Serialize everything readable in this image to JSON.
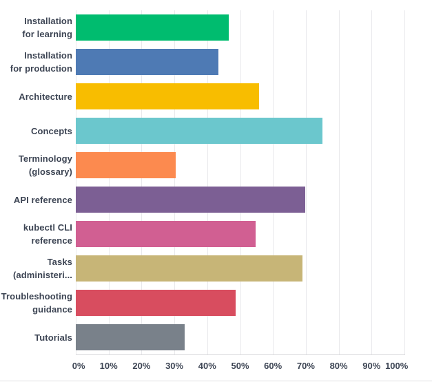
{
  "chart_data": {
    "type": "bar",
    "orientation": "horizontal",
    "categories": [
      "Installation for learning",
      "Installation for production",
      "Architecture",
      "Concepts",
      "Terminology (glossary)",
      "API reference",
      "kubectl CLI reference",
      "Tasks (administeri...",
      "Troubleshooting guidance",
      "Tutorials"
    ],
    "category_label_lines": [
      [
        "Installation",
        "for learning"
      ],
      [
        "Installation",
        "for production"
      ],
      [
        "Architecture"
      ],
      [
        "Concepts"
      ],
      [
        "Terminology",
        "(glossary)"
      ],
      [
        "API reference"
      ],
      [
        "kubectl CLI",
        "reference"
      ],
      [
        "Tasks",
        "(administeri..."
      ],
      [
        "Troubleshooting",
        "guidance"
      ],
      [
        "Tutorials"
      ]
    ],
    "values": [
      46.5,
      43.5,
      55.8,
      75.0,
      30.3,
      69.9,
      54.8,
      68.9,
      48.6,
      33.1
    ],
    "bar_colors": [
      "#00bc6f",
      "#4e7ab4",
      "#f8bd00",
      "#6bc7cd",
      "#fc8a4f",
      "#7c5f94",
      "#d15f92",
      "#c7b577",
      "#d84d5f",
      "#79818a"
    ],
    "x_ticks": [
      0,
      10,
      20,
      30,
      40,
      50,
      60,
      70,
      80,
      90,
      100
    ],
    "x_tick_labels": [
      "0%",
      "10%",
      "20%",
      "30%",
      "40%",
      "50%",
      "60%",
      "70%",
      "80%",
      "90%",
      "100%"
    ],
    "xlim": [
      0,
      100
    ],
    "grid": "vertical",
    "legend": "none"
  },
  "style": {
    "grid_color": "#e9e9ec",
    "axis_color": "#d7d7da",
    "label_color": "#3d4554",
    "background": "#ffffff"
  }
}
